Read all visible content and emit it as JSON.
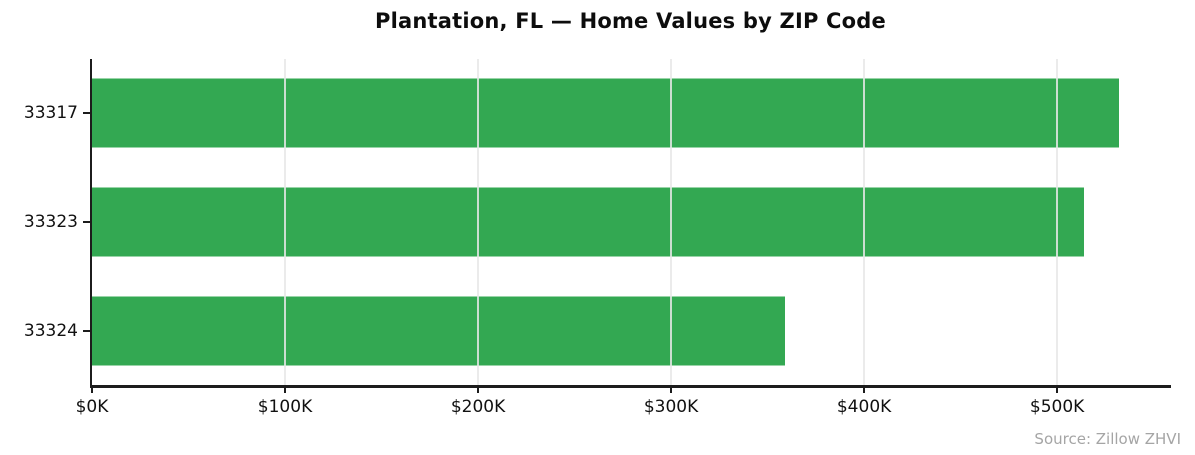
{
  "title": "Plantation, FL — Home Values by ZIP Code",
  "source_note": "Source: Zillow ZHVI",
  "colors": {
    "bar": "#33a852",
    "gridline": "#e7e7e7",
    "spine": "#1c1c1c",
    "tick_label": "#111111",
    "source_text": "#a5a5a5",
    "background": "#ffffff"
  },
  "chart_data": {
    "type": "bar",
    "orientation": "horizontal",
    "title": "Plantation, FL — Home Values by ZIP Code",
    "categories": [
      "33317",
      "33323",
      "33324"
    ],
    "values": [
      532,
      514,
      359
    ],
    "value_unit": "thousand USD (Zillow ZHVI)",
    "xlabel": "",
    "ylabel": "",
    "xlim": [
      0,
      559
    ],
    "xticks": [
      0,
      100,
      200,
      300,
      400,
      500
    ],
    "xtick_labels": [
      "$0K",
      "$100K",
      "$200K",
      "$300K",
      "$400K",
      "$500K"
    ],
    "grid": "vertical-gridlines-on",
    "legend": "none",
    "bar_color": "#33a852",
    "annotation": "Source: Zillow ZHVI"
  }
}
